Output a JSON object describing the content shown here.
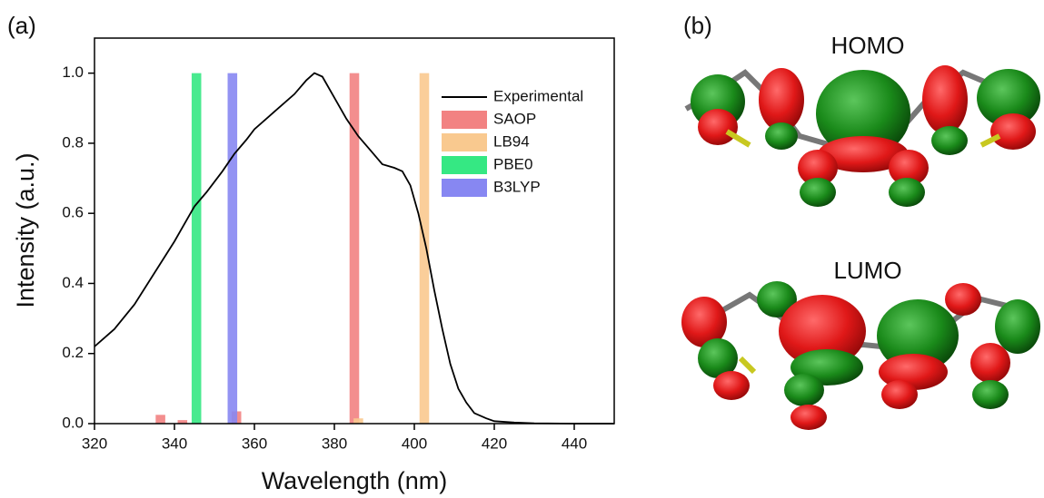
{
  "chart_data": {
    "type": "line",
    "panel_label": "(a)",
    "x_label": "Wavelength (nm)",
    "y_label": "Intensity (a.u.)",
    "xlim": [
      320,
      450
    ],
    "xticks": [
      320,
      340,
      360,
      380,
      400,
      420,
      440
    ],
    "ylim": [
      0,
      1.1
    ],
    "yticks": [
      {
        "value": 0,
        "label": "0.0"
      },
      {
        "value": 0.2,
        "label": "0.2"
      },
      {
        "value": 0.4,
        "label": "0.4"
      },
      {
        "value": 0.6,
        "label": "0.6"
      },
      {
        "value": 0.8,
        "label": "0.8"
      },
      {
        "value": 1,
        "label": "1.0"
      }
    ],
    "legend": "upper right",
    "series": [
      {
        "name": "Experimental",
        "type": "line",
        "color": "#000000",
        "x": [
          320,
          325,
          330,
          335,
          340,
          345,
          348,
          350,
          352,
          355,
          358,
          360,
          365,
          370,
          373,
          375,
          377,
          380,
          383,
          386,
          389,
          392,
          395,
          397,
          399,
          401,
          403,
          405,
          407,
          409,
          411,
          413,
          415,
          418,
          420,
          425,
          430,
          440,
          450
        ],
        "values": [
          0.22,
          0.27,
          0.34,
          0.43,
          0.52,
          0.62,
          0.66,
          0.69,
          0.72,
          0.77,
          0.81,
          0.84,
          0.89,
          0.94,
          0.98,
          1.0,
          0.99,
          0.93,
          0.87,
          0.82,
          0.78,
          0.74,
          0.73,
          0.72,
          0.68,
          0.6,
          0.5,
          0.38,
          0.27,
          0.17,
          0.1,
          0.06,
          0.03,
          0.015,
          0.007,
          0.003,
          0.001,
          0,
          0
        ]
      },
      {
        "name": "SAOP",
        "type": "bar",
        "color": "#f28282",
        "x": [
          336.5,
          342,
          355.5,
          385
        ],
        "values": [
          0.025,
          0.01,
          0.035,
          1.0
        ]
      },
      {
        "name": "LB94",
        "type": "bar",
        "color": "#f9c98f",
        "x": [
          386,
          402.5
        ],
        "values": [
          0.015,
          1.0
        ]
      },
      {
        "name": "PBE0",
        "type": "bar",
        "color": "#35e883",
        "x": [
          345.5
        ],
        "values": [
          1.0
        ]
      },
      {
        "name": "B3LYP",
        "type": "bar",
        "color": "#8787f2",
        "x": [
          354.5
        ],
        "values": [
          1.0
        ]
      }
    ]
  },
  "figure_b": {
    "panel_label": "(b)",
    "homo": "HOMO",
    "lumo": "LUMO"
  }
}
